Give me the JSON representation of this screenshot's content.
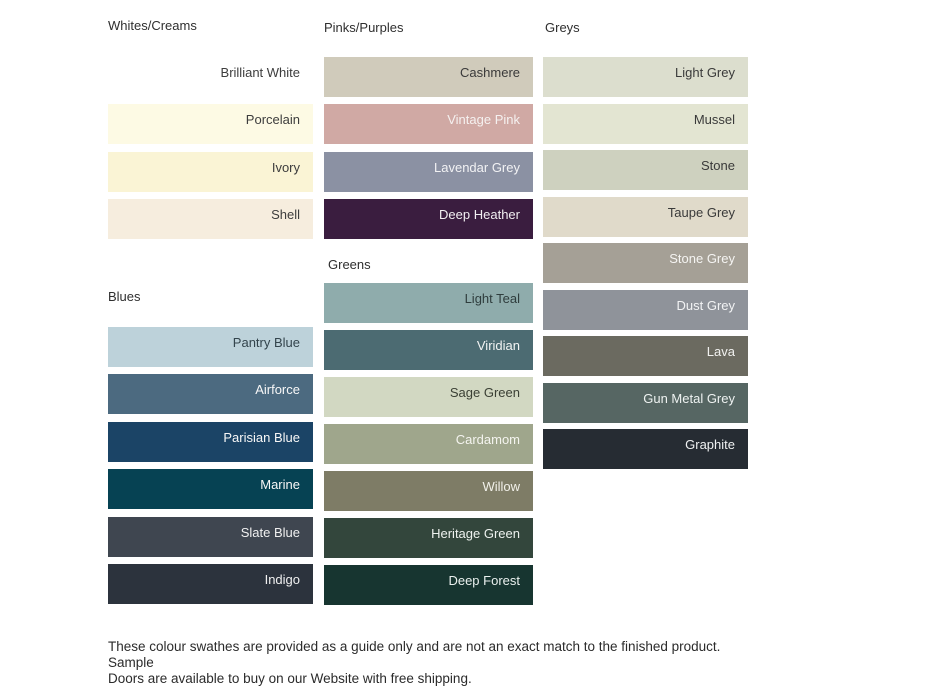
{
  "groups": {
    "whites_creams": {
      "label": "Whites/Creams",
      "swatches": [
        {
          "name": "Brilliant White",
          "bg": "#ffffff",
          "text": "#3d3d3d"
        },
        {
          "name": "Porcelain",
          "bg": "#fdfae4",
          "text": "#3d3d3d"
        },
        {
          "name": "Ivory",
          "bg": "#faf4d5",
          "text": "#3d3d3d"
        },
        {
          "name": "Shell",
          "bg": "#f6edde",
          "text": "#3d3d3d"
        }
      ]
    },
    "blues": {
      "label": "Blues",
      "swatches": [
        {
          "name": "Pantry Blue",
          "bg": "#bdd2da",
          "text": "#33444c"
        },
        {
          "name": "Airforce",
          "bg": "#4c6a80",
          "text": "#f7f7f7"
        },
        {
          "name": "Parisian Blue",
          "bg": "#1b4466",
          "text": "#f7f7f7"
        },
        {
          "name": "Marine",
          "bg": "#064253",
          "text": "#f7f7f7"
        },
        {
          "name": "Slate Blue",
          "bg": "#3f4650",
          "text": "#f0f0f0"
        },
        {
          "name": "Indigo",
          "bg": "#2c333d",
          "text": "#f0f0f0"
        }
      ]
    },
    "pinks_purples": {
      "label": "Pinks/Purples",
      "swatches": [
        {
          "name": "Cashmere",
          "bg": "#d0cbbb",
          "text": "#3a3a3a"
        },
        {
          "name": "Vintage Pink",
          "bg": "#d0a9a4",
          "text": "#f5f1f0"
        },
        {
          "name": "Lavendar Grey",
          "bg": "#8b91a3",
          "text": "#f2f2f4"
        },
        {
          "name": "Deep Heather",
          "bg": "#3a1d3f",
          "text": "#f2eff2"
        }
      ]
    },
    "greens": {
      "label": "Greens",
      "swatches": [
        {
          "name": "Light Teal",
          "bg": "#8facac",
          "text": "#2f3d3d"
        },
        {
          "name": "Viridian",
          "bg": "#4c6b72",
          "text": "#f2f4f4"
        },
        {
          "name": "Sage Green",
          "bg": "#d2d8c2",
          "text": "#3a3f34"
        },
        {
          "name": "Cardamom",
          "bg": "#9fa68c",
          "text": "#f4f4ef"
        },
        {
          "name": "Willow",
          "bg": "#7e7c66",
          "text": "#f2f1ea"
        },
        {
          "name": "Heritage Green",
          "bg": "#33463c",
          "text": "#eef2ef"
        },
        {
          "name": "Deep Forest",
          "bg": "#173530",
          "text": "#eaf0ee"
        }
      ]
    },
    "greys": {
      "label": "Greys",
      "swatches": [
        {
          "name": "Light Grey",
          "bg": "#dcdece",
          "text": "#3a3a3a"
        },
        {
          "name": "Mussel",
          "bg": "#e3e5d2",
          "text": "#3a3a3a"
        },
        {
          "name": "Stone",
          "bg": "#ced1bf",
          "text": "#3a3a3a"
        },
        {
          "name": "Taupe Grey",
          "bg": "#e0daca",
          "text": "#3a3a3a"
        },
        {
          "name": "Stone Grey",
          "bg": "#a5a096",
          "text": "#f5f4f2"
        },
        {
          "name": "Dust Grey",
          "bg": "#8f939a",
          "text": "#f2f3f4"
        },
        {
          "name": "Lava",
          "bg": "#6b6a60",
          "text": "#f1f1ef"
        },
        {
          "name": "Gun Metal Grey",
          "bg": "#566663",
          "text": "#eef2f1"
        },
        {
          "name": "Graphite",
          "bg": "#262c33",
          "text": "#eff1f2"
        }
      ]
    }
  },
  "footer": {
    "line1": "These colour swathes are provided as a guide only and are not an exact match to the finished product.  Sample",
    "line2": "Doors are available to buy on our Website with free shipping."
  }
}
